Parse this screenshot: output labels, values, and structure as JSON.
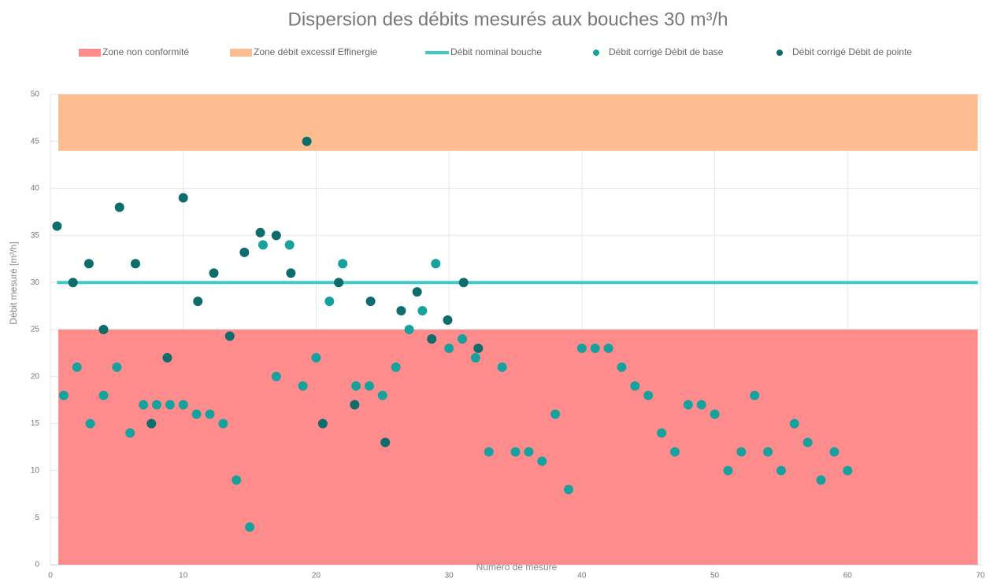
{
  "chart_data": {
    "type": "scatter",
    "title": "Dispersion des débits mesurés aux bouches 30 m³/h",
    "x_label": "Numéro de mesure",
    "y_label": "Débit mesuré [m³/h]",
    "xlim": [
      0,
      70
    ],
    "ylim": [
      0,
      50
    ],
    "xticks": [
      0,
      10,
      20,
      30,
      40,
      50,
      60,
      70
    ],
    "yticks": [
      0,
      5,
      10,
      15,
      20,
      25,
      30,
      35,
      40,
      45,
      50
    ],
    "grid": true,
    "zones": [
      {
        "name": "Zone non conformité",
        "color": "#fe8c8c",
        "x": [
          0.6,
          69.8
        ],
        "y": [
          0,
          25
        ]
      },
      {
        "name": "Zone débit excessif Effinergie",
        "color": "#fdbd90",
        "x": [
          0.6,
          69.8
        ],
        "y": [
          44,
          50
        ]
      }
    ],
    "lines": [
      {
        "name": "Débit nominal bouche",
        "color": "#3ecaca",
        "x": [
          0.5,
          69.8
        ],
        "values": [
          30,
          30
        ]
      }
    ],
    "series": [
      {
        "name": "Débit corrigé Débit de base",
        "color": "#17a19e",
        "x": [
          1,
          2,
          3,
          4,
          5,
          6,
          7,
          8,
          9,
          10,
          11,
          12,
          13,
          14,
          15,
          16,
          17,
          18,
          19,
          20,
          21,
          22,
          23,
          24,
          25,
          26,
          27,
          28,
          29,
          30,
          31,
          32,
          33,
          34,
          35,
          36,
          37,
          38,
          39,
          40,
          41,
          42,
          43,
          44,
          45,
          46,
          47,
          48,
          49,
          50,
          51,
          52,
          53,
          54,
          55,
          56,
          57,
          58,
          59,
          60
        ],
        "values": [
          18,
          21,
          15,
          18,
          21,
          14,
          17,
          17,
          17,
          17,
          16,
          16,
          15,
          9,
          4,
          34,
          20,
          34,
          19,
          22,
          28,
          32,
          19,
          19,
          18,
          21,
          25,
          27,
          32,
          23,
          24,
          22,
          12,
          21,
          12,
          12,
          11,
          16,
          8,
          23,
          23,
          23,
          21,
          19,
          18,
          14,
          12,
          17,
          17,
          16,
          10,
          12,
          18,
          12,
          10,
          15,
          13,
          9,
          12,
          10
        ]
      },
      {
        "name": "Débit corrigé Débit de pointe",
        "color": "#0d6d6c",
        "x": [
          0.5,
          1.7,
          2.9,
          4.0,
          5.2,
          6.4,
          7.6,
          8.8,
          10.0,
          11.1,
          12.3,
          13.5,
          14.6,
          15.8,
          17.0,
          18.1,
          19.3,
          20.5,
          21.7,
          22.9,
          24.1,
          25.2,
          26.4,
          27.6,
          28.7,
          29.9,
          31.1,
          32.2
        ],
        "values": [
          36,
          30,
          32,
          25,
          38,
          32,
          15,
          22,
          39,
          28,
          31,
          24.3,
          33.2,
          35.3,
          35,
          31,
          45,
          15,
          30,
          17,
          28,
          13,
          27,
          29,
          24,
          26,
          30,
          23
        ]
      }
    ]
  }
}
